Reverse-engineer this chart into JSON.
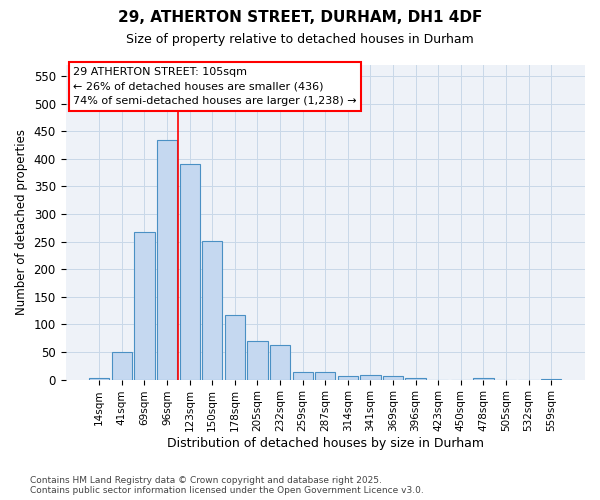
{
  "title1": "29, ATHERTON STREET, DURHAM, DH1 4DF",
  "title2": "Size of property relative to detached houses in Durham",
  "xlabel": "Distribution of detached houses by size in Durham",
  "ylabel": "Number of detached properties",
  "bar_labels": [
    "14sqm",
    "41sqm",
    "69sqm",
    "96sqm",
    "123sqm",
    "150sqm",
    "178sqm",
    "205sqm",
    "232sqm",
    "259sqm",
    "287sqm",
    "314sqm",
    "341sqm",
    "369sqm",
    "396sqm",
    "423sqm",
    "450sqm",
    "478sqm",
    "505sqm",
    "532sqm",
    "559sqm"
  ],
  "bar_heights": [
    3,
    50,
    268,
    435,
    390,
    251,
    117,
    70,
    62,
    14,
    14,
    6,
    8,
    6,
    2,
    0,
    0,
    2,
    0,
    0,
    1
  ],
  "bar_color": "#c5d8f0",
  "bar_edge_color": "#4a90c4",
  "grid_color": "#c8d8e8",
  "annotation_line1": "29 ATHERTON STREET: 105sqm",
  "annotation_line2": "← 26% of detached houses are smaller (436)",
  "annotation_line3": "74% of semi-detached houses are larger (1,238) →",
  "red_line_x": 3.5,
  "ylim": [
    0,
    570
  ],
  "yticks": [
    0,
    50,
    100,
    150,
    200,
    250,
    300,
    350,
    400,
    450,
    500,
    550
  ],
  "footer_text": "Contains HM Land Registry data © Crown copyright and database right 2025.\nContains public sector information licensed under the Open Government Licence v3.0.",
  "bg_color": "#ffffff",
  "plot_bg_color": "#eef2f8"
}
